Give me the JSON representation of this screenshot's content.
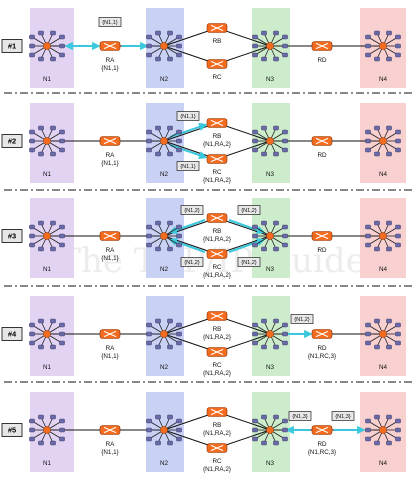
{
  "watermark": "The TCP/IP Guide",
  "colors": {
    "n1": "#e3d3f3",
    "n2": "#c9d2f4",
    "n3": "#cdeccb",
    "n4": "#f8d0d0",
    "router": "#f26b1e",
    "router_edge": "#8a3306",
    "host": "#6a6aa8",
    "arrow": "#39c8dc",
    "link": "#111111"
  },
  "network_labels": {
    "n1": "N1",
    "n2": "N2",
    "n3": "N3",
    "n4": "N4"
  },
  "router_names": {
    "ra": "RA",
    "rb": "RB",
    "rc": "RC",
    "rd": "RD"
  },
  "steps": [
    {
      "id": "#1",
      "table": {
        "ra": "{N1,1}",
        "rb": "",
        "rc": "",
        "rd": ""
      },
      "tags": [
        {
          "text": "{N1,1}",
          "anchor": "ra-top"
        }
      ],
      "arrows": [
        "n1-ra",
        "ra-n2"
      ]
    },
    {
      "id": "#2",
      "table": {
        "ra": "{N1,1}",
        "rb": "{N1,RA,2}",
        "rc": "{N1,RA,2}",
        "rd": ""
      },
      "tags": [
        {
          "text": "{N1,1}",
          "anchor": "n2-up"
        },
        {
          "text": "{N1,1}",
          "anchor": "n2-down"
        }
      ],
      "arrows": [
        "n2-rb",
        "n2-rc"
      ]
    },
    {
      "id": "#3",
      "table": {
        "ra": "{N1,1}",
        "rb": "{N1,RA,2}",
        "rc": "{N1,RA,2}",
        "rd": ""
      },
      "tags": [
        {
          "text": "{N1,2}",
          "anchor": "rb-left"
        },
        {
          "text": "{N1,2}",
          "anchor": "rb-right"
        },
        {
          "text": "{N1,2}",
          "anchor": "rc-left"
        },
        {
          "text": "{N1,2}",
          "anchor": "rc-right"
        }
      ],
      "arrows": [
        "rb-n2",
        "rb-n3",
        "rc-n2",
        "rc-n3"
      ]
    },
    {
      "id": "#4",
      "table": {
        "ra": "{N1,1}",
        "rb": "{N1,RA,2}",
        "rc": "{N1,RA,2}",
        "rd": "{N1,RC,3}"
      },
      "tags": [
        {
          "text": "{N1,2}",
          "anchor": "n3-rd"
        }
      ],
      "arrows": [
        "n3-rd"
      ]
    },
    {
      "id": "#5",
      "table": {
        "ra": "{N1,1}",
        "rb": "{N1,RA,2}",
        "rc": "{N1,RA,2}",
        "rd": "{N1,RC,3}"
      },
      "tags": [
        {
          "text": "{N1,3}",
          "anchor": "rd-left"
        },
        {
          "text": "{N1,3}",
          "anchor": "rd-right"
        }
      ],
      "arrows": [
        "rd-n3",
        "rd-n4"
      ]
    }
  ]
}
